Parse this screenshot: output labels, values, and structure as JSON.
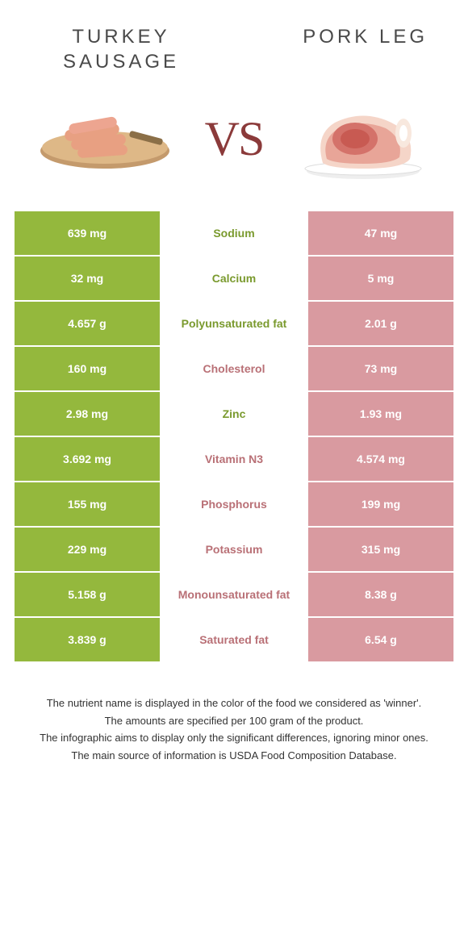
{
  "colors": {
    "left": "#94b83d",
    "right": "#d99aa0",
    "left_text": "#7a9a2e",
    "right_text": "#b97076",
    "vs": "#8b3a3a"
  },
  "foods": {
    "left": "TURKEY SAUSAGE",
    "right": "PORK LEG"
  },
  "vs": "VS",
  "rows": [
    {
      "left": "639 mg",
      "label": "Sodium",
      "right": "47 mg",
      "winner": "left"
    },
    {
      "left": "32 mg",
      "label": "Calcium",
      "right": "5 mg",
      "winner": "left"
    },
    {
      "left": "4.657 g",
      "label": "Polyunsaturated fat",
      "right": "2.01 g",
      "winner": "left"
    },
    {
      "left": "160 mg",
      "label": "Cholesterol",
      "right": "73 mg",
      "winner": "right"
    },
    {
      "left": "2.98 mg",
      "label": "Zinc",
      "right": "1.93 mg",
      "winner": "left"
    },
    {
      "left": "3.692 mg",
      "label": "Vitamin N3",
      "right": "4.574 mg",
      "winner": "right"
    },
    {
      "left": "155 mg",
      "label": "Phosphorus",
      "right": "199 mg",
      "winner": "right"
    },
    {
      "left": "229 mg",
      "label": "Potassium",
      "right": "315 mg",
      "winner": "right"
    },
    {
      "left": "5.158 g",
      "label": "Monounsaturated fat",
      "right": "8.38 g",
      "winner": "right"
    },
    {
      "left": "3.839 g",
      "label": "Saturated fat",
      "right": "6.54 g",
      "winner": "right"
    }
  ],
  "footnotes": [
    "The nutrient name is displayed in the color of the food we considered as 'winner'.",
    "The amounts are specified per 100 gram of the product.",
    "The infographic aims to display only the significant differences, ignoring minor ones.",
    "The main source of information is USDA Food Composition Database."
  ]
}
